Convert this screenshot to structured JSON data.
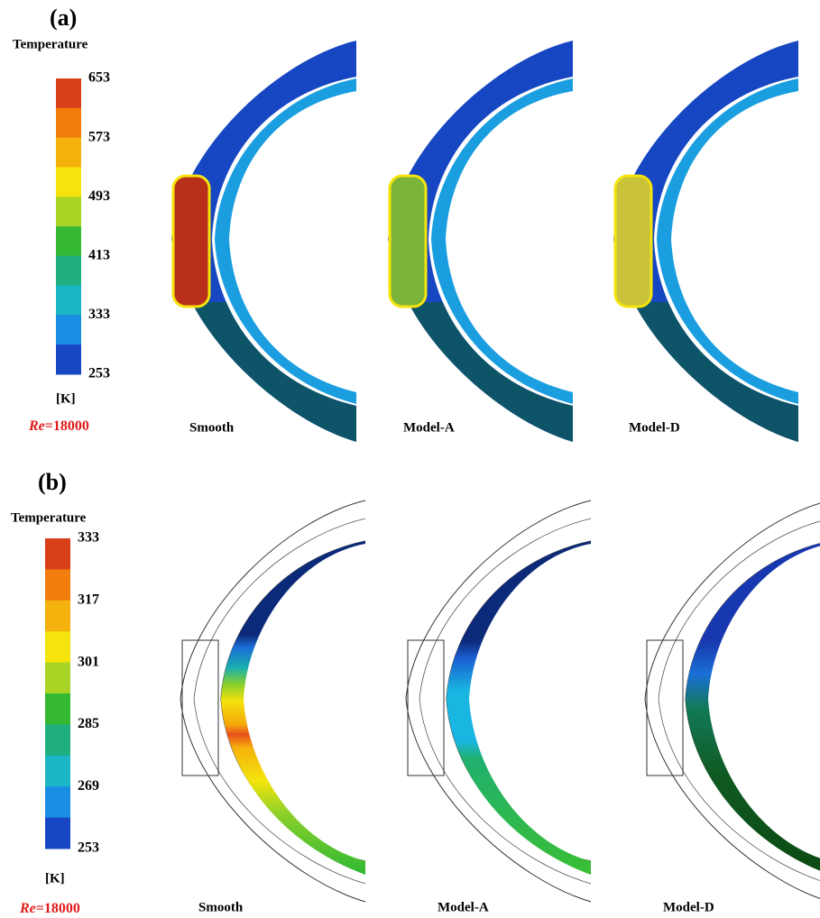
{
  "panels": [
    {
      "label": "(a)",
      "legend_title": "Temperature",
      "ticks": [
        "653",
        "573",
        "493",
        "413",
        "333",
        "253"
      ],
      "unit": "[K]",
      "re_label": {
        "symbol": "Re",
        "value": "=18000"
      },
      "captions": [
        "Smooth",
        "Model-A",
        "Model-D"
      ]
    },
    {
      "label": "(b)",
      "legend_title": "Temperature",
      "ticks": [
        "333",
        "317",
        "301",
        "285",
        "269",
        "253"
      ],
      "unit": "[K]",
      "re_label": {
        "symbol": "Re",
        "value": "=18000"
      },
      "captions": [
        "Smooth",
        "Model-A",
        "Model-D"
      ]
    }
  ],
  "colorbar_colors": [
    "#d8401a",
    "#f07d0c",
    "#f5b20c",
    "#f4e40c",
    "#a9d426",
    "#35b934",
    "#1fae80",
    "#1cb5c6",
    "#1a8ee2",
    "#1747c2"
  ]
}
